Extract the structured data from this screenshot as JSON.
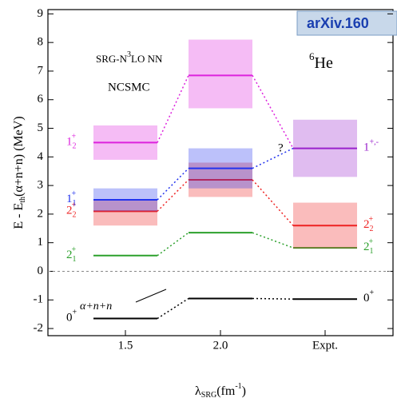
{
  "chart_data": {
    "type": "level",
    "banner": "arXiv.160",
    "annotation_model": [
      "SRG-N",
      "3",
      "LO NN"
    ],
    "annotation_method": "NCSMC",
    "annotation_nucleus": [
      "6",
      "He"
    ],
    "annotation_question": "?",
    "annotation_threshold": "α+n+n",
    "y_label": [
      "E - E",
      "th",
      "(α+n+n) (MeV)"
    ],
    "x_label": [
      "λ",
      "SRG",
      "(fm",
      "-1",
      ")"
    ],
    "categories": [
      "1.5",
      "2.0",
      "Expt."
    ],
    "ylim": [
      -2.25,
      9.15
    ],
    "yticks": [
      -2,
      -1,
      0,
      1,
      2,
      3,
      4,
      5,
      6,
      7,
      8,
      9
    ],
    "threshold": 0,
    "series": [
      {
        "name": "0",
        "sub": "",
        "sup": "+",
        "color": "#000000",
        "values": [
          -1.65,
          -0.95,
          -0.97
        ],
        "low": [
          null,
          null,
          null
        ],
        "high": [
          null,
          null,
          null
        ],
        "label_sides": [
          "left",
          "right"
        ]
      },
      {
        "name": "2",
        "sub": "1",
        "sup": "+",
        "color": "#2ca02c",
        "values": [
          0.55,
          1.35,
          0.82
        ],
        "low": [
          null,
          null,
          null
        ],
        "high": [
          null,
          null,
          null
        ],
        "label_sides": [
          "left",
          "right"
        ]
      },
      {
        "name": "2",
        "sub": "2",
        "sup": "+",
        "color": "#ee2222",
        "values": [
          2.1,
          3.2,
          1.6
        ],
        "low": [
          1.6,
          2.6,
          0.8
        ],
        "high": [
          2.5,
          3.8,
          2.4
        ],
        "label_sides": [
          "left",
          "right"
        ]
      },
      {
        "name": "1",
        "sub": "1",
        "sup": "+",
        "color": "#2233ee",
        "values": [
          2.5,
          3.6,
          null
        ],
        "low": [
          2.1,
          2.9,
          null
        ],
        "high": [
          2.9,
          4.3,
          null
        ],
        "label_sides": [
          "left"
        ]
      },
      {
        "name": "1",
        "sub": "2",
        "sup": "+",
        "color": "#dd22dd",
        "values": [
          4.5,
          6.85,
          null
        ],
        "low": [
          3.9,
          5.7,
          null
        ],
        "high": [
          5.1,
          8.1,
          null
        ],
        "label_sides": [
          "left"
        ]
      },
      {
        "name": "1",
        "sub": "",
        "sup": "+,-",
        "color": "#9922cc",
        "values": [
          null,
          null,
          4.3
        ],
        "low": [
          null,
          null,
          3.3
        ],
        "high": [
          null,
          null,
          5.3
        ],
        "label_sides": [
          "right"
        ]
      }
    ]
  }
}
